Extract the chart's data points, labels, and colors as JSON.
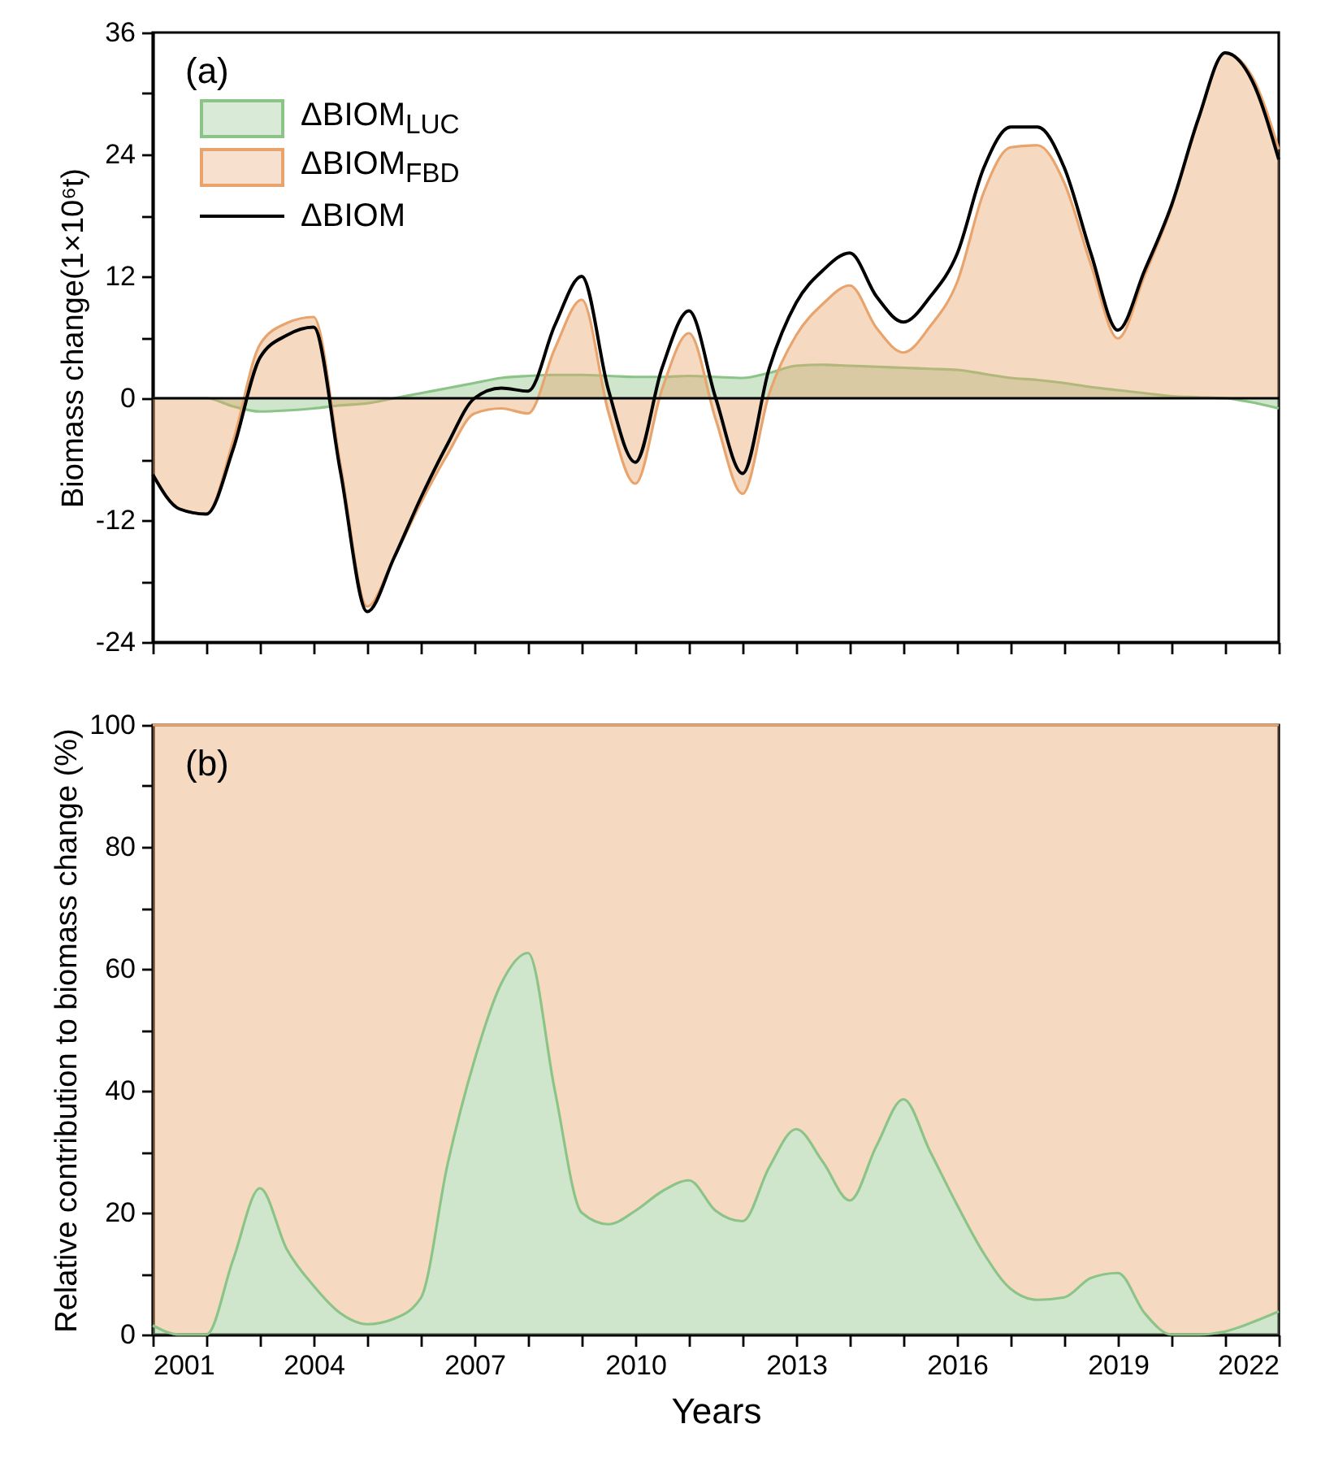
{
  "chart_data": [
    {
      "type": "area",
      "x": [
        2001,
        2001.5,
        2002,
        2002.5,
        2003,
        2003.5,
        2004,
        2004.5,
        2005,
        2005.5,
        2006,
        2006.5,
        2007,
        2007.5,
        2008,
        2008.5,
        2009,
        2009.5,
        2010,
        2010.5,
        2011,
        2011.5,
        2012,
        2012.5,
        2013,
        2013.5,
        2014,
        2014.5,
        2015,
        2015.5,
        2016,
        2016.5,
        2017,
        2017.5,
        2018,
        2018.5,
        2019,
        2019.5,
        2020,
        2020.5,
        2021,
        2021.5,
        2022
      ],
      "series": [
        {
          "name": "ΔBIOM$_{LUC}$",
          "color": "#8cc487",
          "values": [
            0,
            0,
            0,
            -0.8,
            -1.3,
            -1.2,
            -1,
            -0.7,
            -0.5,
            0,
            0.5,
            1,
            1.5,
            2,
            2.2,
            2.3,
            2.3,
            2.2,
            2.1,
            2.1,
            2.2,
            2.1,
            2,
            2.5,
            3.2,
            3.3,
            3.2,
            3.1,
            3,
            2.9,
            2.8,
            2.4,
            2,
            1.8,
            1.5,
            1.1,
            0.8,
            0.5,
            0.2,
            0.1,
            0,
            -0.4,
            -1
          ]
        },
        {
          "name": "ΔBIOM$_{FBD}$",
          "color": "#e8a46c",
          "values": [
            -7.5,
            -10.9,
            -11.4,
            -4.2,
            5.3,
            7.4,
            8,
            -6.5,
            -20.5,
            -15.7,
            -10.3,
            -5.5,
            -1.5,
            -1,
            -1.5,
            4.9,
            9.7,
            -1.4,
            -8.4,
            0.9,
            6.4,
            -2.1,
            -9.4,
            0.5,
            6.2,
            9.3,
            11.1,
            6.9,
            4.5,
            7.1,
            11.4,
            20.3,
            24.7,
            24.9,
            21.2,
            13.1,
            5.9,
            12.1,
            18.8,
            27.4,
            34,
            31.7,
            24.5
          ]
        },
        {
          "name": "ΔBIOM",
          "type": "line",
          "color": "#000000",
          "values": [
            -7.5,
            -10.9,
            -11.4,
            -5,
            4,
            6.2,
            7,
            -7.2,
            -21,
            -15.7,
            -9.8,
            -4.5,
            0,
            1,
            0.7,
            7.2,
            12,
            0.8,
            -6.3,
            3,
            8.6,
            0,
            -7.4,
            3,
            9.4,
            12.6,
            14.3,
            10,
            7.5,
            10,
            14.2,
            22.7,
            26.7,
            26.7,
            22.7,
            14.2,
            6.7,
            12.6,
            19,
            27.5,
            34,
            31.3,
            23.5
          ]
        }
      ],
      "ylabel": "Biomass change(1×10⁶t)",
      "annotations": [
        "(a)"
      ],
      "legend": "top left",
      "tick_labels": "y",
      "xlim": [
        2001,
        2022
      ],
      "xticks": [
        2001,
        {
          "value": 2002,
          "label": null
        },
        {
          "value": 2003,
          "label": null
        },
        2004,
        {
          "value": 2005,
          "label": null
        },
        {
          "value": 2006,
          "label": null
        },
        2007,
        {
          "value": 2008,
          "label": null
        },
        {
          "value": 2009,
          "label": null
        },
        2010,
        {
          "value": 2011,
          "label": null
        },
        {
          "value": 2012,
          "label": null
        },
        2013,
        {
          "value": 2014,
          "label": null
        },
        {
          "value": 2015,
          "label": null
        },
        2016,
        {
          "value": 2017,
          "label": null
        },
        {
          "value": 2018,
          "label": null
        },
        2019,
        {
          "value": 2020,
          "label": null
        },
        {
          "value": 2021,
          "label": null
        },
        2022
      ],
      "ylim": [
        -24,
        36
      ],
      "yticks": [
        -24,
        {
          "value": -18,
          "label": null
        },
        -12,
        {
          "value": -6,
          "label": null
        },
        0,
        {
          "value": 6,
          "label": null
        },
        12,
        {
          "value": 18,
          "label": null
        },
        24,
        {
          "value": 30,
          "label": null
        },
        36
      ],
      "ref_lines": [
        {
          "axis": "y",
          "value": 0,
          "color": "#000000"
        }
      ]
    },
    {
      "type": "area",
      "stacked": true,
      "x": [
        2001,
        2001.5,
        2002,
        2002.5,
        2003,
        2003.5,
        2004,
        2004.5,
        2005,
        2005.5,
        2006,
        2006.5,
        2007,
        2007.5,
        2008,
        2008.5,
        2009,
        2009.5,
        2010,
        2010.5,
        2011,
        2011.5,
        2012,
        2012.5,
        2013,
        2013.5,
        2014,
        2014.5,
        2015,
        2015.5,
        2016,
        2016.5,
        2017,
        2017.5,
        2018,
        2018.5,
        2019,
        2019.5,
        2020,
        2020.5,
        2021,
        2021.5,
        2022
      ],
      "series": [
        {
          "color": "#8cc487",
          "values": [
            1.5,
            0,
            0,
            12.3,
            24,
            14,
            8,
            3.5,
            1.7,
            2.6,
            6,
            28,
            45,
            57.6,
            62.6,
            40,
            20,
            18.1,
            20.3,
            23.5,
            25.3,
            20.3,
            18.6,
            27.5,
            33.7,
            28.3,
            22,
            31,
            38.6,
            30,
            21.3,
            13.3,
            7.5,
            5.7,
            6.1,
            9.3,
            10.1,
            3.5,
            0,
            0,
            0.5,
            2,
            3.8
          ]
        },
        {
          "color": "#e8a46c",
          "values": [
            98.5,
            100,
            100,
            87.7,
            76,
            86,
            92,
            96.5,
            98.3,
            97.4,
            94,
            72,
            55,
            42.4,
            37.4,
            60,
            80,
            81.9,
            79.7,
            76.5,
            74.7,
            79.7,
            81.4,
            72.5,
            66.3,
            71.7,
            78,
            69,
            61.4,
            70,
            78.7,
            86.7,
            92.5,
            94.3,
            93.9,
            90.7,
            89.9,
            96.5,
            100,
            100,
            99.5,
            98,
            96.2
          ]
        }
      ],
      "xlabel": "Years",
      "ylabel": "Relative contribution to biomass change (%)",
      "annotations": [
        "(b)"
      ],
      "xlim": [
        2001,
        2022
      ],
      "xticks": [
        2001,
        {
          "value": 2002,
          "label": null
        },
        {
          "value": 2003,
          "label": null
        },
        2004,
        {
          "value": 2005,
          "label": null
        },
        {
          "value": 2006,
          "label": null
        },
        2007,
        {
          "value": 2008,
          "label": null
        },
        {
          "value": 2009,
          "label": null
        },
        2010,
        {
          "value": 2011,
          "label": null
        },
        {
          "value": 2012,
          "label": null
        },
        2013,
        {
          "value": 2014,
          "label": null
        },
        {
          "value": 2015,
          "label": null
        },
        2016,
        {
          "value": 2017,
          "label": null
        },
        {
          "value": 2018,
          "label": null
        },
        2019,
        {
          "value": 2020,
          "label": null
        },
        {
          "value": 2021,
          "label": null
        },
        2022
      ],
      "ylim": [
        0,
        100
      ],
      "yticks": [
        0,
        {
          "value": 10,
          "label": null
        },
        20,
        {
          "value": 30,
          "label": null
        },
        40,
        {
          "value": 50,
          "label": null
        },
        60,
        {
          "value": 70,
          "label": null
        },
        80,
        {
          "value": 90,
          "label": null
        },
        100
      ]
    }
  ]
}
